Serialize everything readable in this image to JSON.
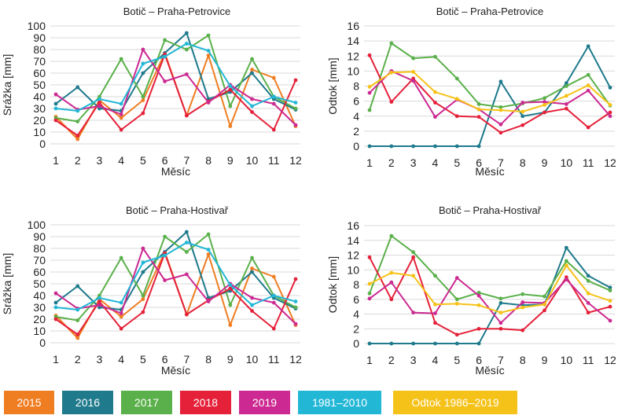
{
  "colors": {
    "2015": "#ef7d21",
    "2016": "#1f7a8c",
    "2017": "#5ab04a",
    "2018": "#e5213a",
    "2019": "#cc2a92",
    "1981-2010": "#23b7d6",
    "odtok": "#f5c219"
  },
  "legend": [
    {
      "label": "2015",
      "color_key": "2015"
    },
    {
      "label": "2016",
      "color_key": "2016"
    },
    {
      "label": "2017",
      "color_key": "2017"
    },
    {
      "label": "2018",
      "color_key": "2018"
    },
    {
      "label": "2019",
      "color_key": "2019"
    },
    {
      "label": "1981–2010",
      "color_key": "1981-2010"
    },
    {
      "label": "Odtok 1986–2019",
      "color_key": "odtok"
    }
  ],
  "chart_data": [
    {
      "type": "line",
      "title": "Botič – Praha-Petrovice",
      "xlabel": "Měsíc",
      "ylabel": "Srážka [mm]",
      "x": [
        1,
        2,
        3,
        4,
        5,
        6,
        7,
        8,
        9,
        10,
        11,
        12
      ],
      "ylim": [
        0,
        100
      ],
      "yticks": [
        0,
        10,
        20,
        30,
        40,
        50,
        60,
        70,
        80,
        90,
        100
      ],
      "grid": true,
      "series": [
        {
          "name": "2015",
          "color_key": "2015",
          "values": [
            23,
            4,
            37,
            22,
            37,
            77,
            24,
            75,
            15,
            63,
            56,
            15
          ]
        },
        {
          "name": "2016",
          "color_key": "2016",
          "values": [
            34,
            48,
            30,
            28,
            60,
            77,
            94,
            38,
            44,
            60,
            38,
            29
          ]
        },
        {
          "name": "2017",
          "color_key": "2017",
          "values": [
            22,
            19,
            40,
            72,
            40,
            88,
            80,
            92,
            32,
            72,
            40,
            30
          ]
        },
        {
          "name": "2018",
          "color_key": "2018",
          "values": [
            20,
            7,
            35,
            12,
            26,
            76,
            24,
            36,
            46,
            27,
            12,
            54
          ]
        },
        {
          "name": "2019",
          "color_key": "2019",
          "values": [
            42,
            29,
            32,
            25,
            80,
            53,
            59,
            35,
            50,
            38,
            34,
            16
          ]
        },
        {
          "name": "1981–2010",
          "color_key": "1981-2010",
          "values": [
            30,
            28,
            38,
            34,
            68,
            74,
            85,
            79,
            49,
            32,
            40,
            35
          ]
        }
      ]
    },
    {
      "type": "line",
      "title": "Botič – Praha-Petrovice",
      "xlabel": "Měsíc",
      "ylabel": "Odtok [mm]",
      "x": [
        1,
        2,
        3,
        4,
        5,
        6,
        7,
        8,
        9,
        10,
        11,
        12
      ],
      "ylim": [
        0,
        16
      ],
      "yticks": [
        0,
        2,
        4,
        6,
        8,
        10,
        12,
        14,
        16
      ],
      "grid": true,
      "series": [
        {
          "name": "2016",
          "color_key": "2016",
          "values": [
            0,
            0,
            0,
            0,
            0,
            0,
            8.6,
            4.0,
            4.5,
            8.4,
            13.3,
            7.8
          ]
        },
        {
          "name": "2017",
          "color_key": "2017",
          "values": [
            4.8,
            13.7,
            11.7,
            11.9,
            9.0,
            5.6,
            5.2,
            5.7,
            6.4,
            8.0,
            9.5,
            5.4
          ]
        },
        {
          "name": "2018",
          "color_key": "2018",
          "values": [
            12.1,
            5.9,
            9.0,
            5.8,
            4.0,
            3.9,
            1.8,
            2.8,
            4.5,
            5.0,
            2.5,
            4.5
          ]
        },
        {
          "name": "2019",
          "color_key": "2019",
          "values": [
            7.1,
            10.0,
            8.7,
            3.9,
            6.2,
            4.9,
            2.9,
            5.8,
            5.9,
            5.6,
            7.4,
            4.0
          ]
        },
        {
          "name": "Odtok 1986–2019",
          "color_key": "odtok",
          "values": [
            7.9,
            9.8,
            9.9,
            7.2,
            6.3,
            4.9,
            4.8,
            4.6,
            5.5,
            6.7,
            8.1,
            5.5
          ]
        }
      ]
    },
    {
      "type": "line",
      "title": "Botič – Praha-Hostivař",
      "xlabel": "Měsíc",
      "ylabel": "Srážka [mm]",
      "x": [
        1,
        2,
        3,
        4,
        5,
        6,
        7,
        8,
        9,
        10,
        11,
        12
      ],
      "ylim": [
        0,
        100
      ],
      "yticks": [
        0,
        10,
        20,
        30,
        40,
        50,
        60,
        70,
        80,
        90,
        100
      ],
      "grid": true,
      "series": [
        {
          "name": "2015",
          "color_key": "2015",
          "values": [
            23,
            4,
            37,
            22,
            37,
            77,
            24,
            75,
            15,
            63,
            56,
            15
          ]
        },
        {
          "name": "2016",
          "color_key": "2016",
          "values": [
            34,
            48,
            30,
            28,
            60,
            77,
            94,
            38,
            44,
            60,
            38,
            29
          ]
        },
        {
          "name": "2017",
          "color_key": "2017",
          "values": [
            22,
            19,
            40,
            72,
            40,
            90,
            77,
            92,
            32,
            72,
            40,
            30
          ]
        },
        {
          "name": "2018",
          "color_key": "2018",
          "values": [
            20,
            7,
            35,
            12,
            26,
            76,
            24,
            36,
            46,
            27,
            12,
            54
          ]
        },
        {
          "name": "2019",
          "color_key": "2019",
          "values": [
            42,
            29,
            32,
            25,
            80,
            53,
            58,
            35,
            50,
            38,
            34,
            16
          ]
        },
        {
          "name": "1981–2010",
          "color_key": "1981-2010",
          "values": [
            30,
            28,
            38,
            34,
            68,
            74,
            85,
            79,
            49,
            32,
            40,
            35
          ]
        }
      ]
    },
    {
      "type": "line",
      "title": "Botič – Praha-Hostivař",
      "xlabel": "Měsíc",
      "ylabel": "Odtok [mm]",
      "x": [
        1,
        2,
        3,
        4,
        5,
        6,
        7,
        8,
        9,
        10,
        11,
        12
      ],
      "ylim": [
        0,
        16
      ],
      "yticks": [
        0,
        2,
        4,
        6,
        8,
        10,
        12,
        14,
        16
      ],
      "grid": true,
      "series": [
        {
          "name": "2016",
          "color_key": "2016",
          "values": [
            0,
            0,
            0,
            0,
            0,
            0,
            5.5,
            5.2,
            5.3,
            13.0,
            9.2,
            7.6
          ]
        },
        {
          "name": "2017",
          "color_key": "2017",
          "values": [
            6.8,
            14.6,
            12.4,
            9.2,
            6.0,
            6.9,
            6.1,
            6.7,
            6.4,
            11.2,
            8.5,
            7.2
          ]
        },
        {
          "name": "2018",
          "color_key": "2018",
          "values": [
            11.7,
            6.0,
            11.7,
            2.8,
            1.2,
            2.0,
            2.0,
            1.8,
            4.5,
            9.0,
            4.2,
            5.0
          ]
        },
        {
          "name": "2019",
          "color_key": "2019",
          "values": [
            6.1,
            8.3,
            4.2,
            4.1,
            8.9,
            6.5,
            2.8,
            5.6,
            5.5,
            8.7,
            5.5,
            3.1
          ]
        },
        {
          "name": "Odtok 1986–2019",
          "color_key": "odtok",
          "values": [
            8.1,
            9.6,
            9.2,
            5.3,
            5.4,
            5.2,
            4.2,
            4.9,
            5.3,
            10.6,
            6.8,
            5.8
          ]
        }
      ]
    }
  ]
}
